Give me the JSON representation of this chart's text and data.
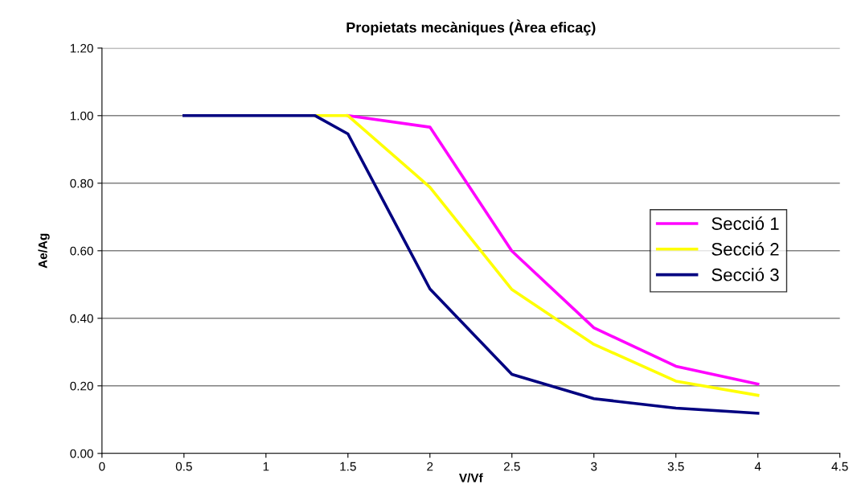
{
  "chart_data": {
    "type": "line",
    "title": "Propietats mecàniques (Àrea eficaç)",
    "xlabel": "V/Vf",
    "ylabel": "Ae/Ag",
    "x": [
      0.5,
      1,
      1.3,
      1.5,
      2,
      2.5,
      3,
      3.5,
      4
    ],
    "series": [
      {
        "name": "Secció 1",
        "color": "#ff00ff",
        "values": [
          null,
          null,
          null,
          1.0,
          0.966,
          0.599,
          0.372,
          0.258,
          0.205
        ]
      },
      {
        "name": "Secció 2",
        "color": "#ffff00",
        "values": [
          null,
          null,
          1.0,
          1.0,
          0.788,
          0.485,
          0.323,
          0.214,
          0.172
        ]
      },
      {
        "name": "Secció 3",
        "color": "#000080",
        "values": [
          1.0,
          1.0,
          1.0,
          0.946,
          0.487,
          0.234,
          0.162,
          0.134,
          0.119
        ]
      }
    ],
    "xlim": [
      0,
      4.5
    ],
    "xticks": [
      0,
      0.5,
      1,
      1.5,
      2,
      2.5,
      3,
      3.5,
      4,
      4.5
    ],
    "ylim": [
      0,
      1.2
    ],
    "yticks": [
      {
        "value": 0,
        "label": "0.00"
      },
      {
        "value": 0.2,
        "label": "0.20"
      },
      {
        "value": 0.4,
        "label": "0.40"
      },
      {
        "value": 0.6,
        "label": "0.60"
      },
      {
        "value": 0.8,
        "label": "0.80"
      },
      {
        "value": 1.0,
        "label": "1.00"
      },
      {
        "value": 1.2,
        "label": "1.20"
      }
    ],
    "grid": "y",
    "legend": "right",
    "marker": "none",
    "line_style": "solid"
  }
}
